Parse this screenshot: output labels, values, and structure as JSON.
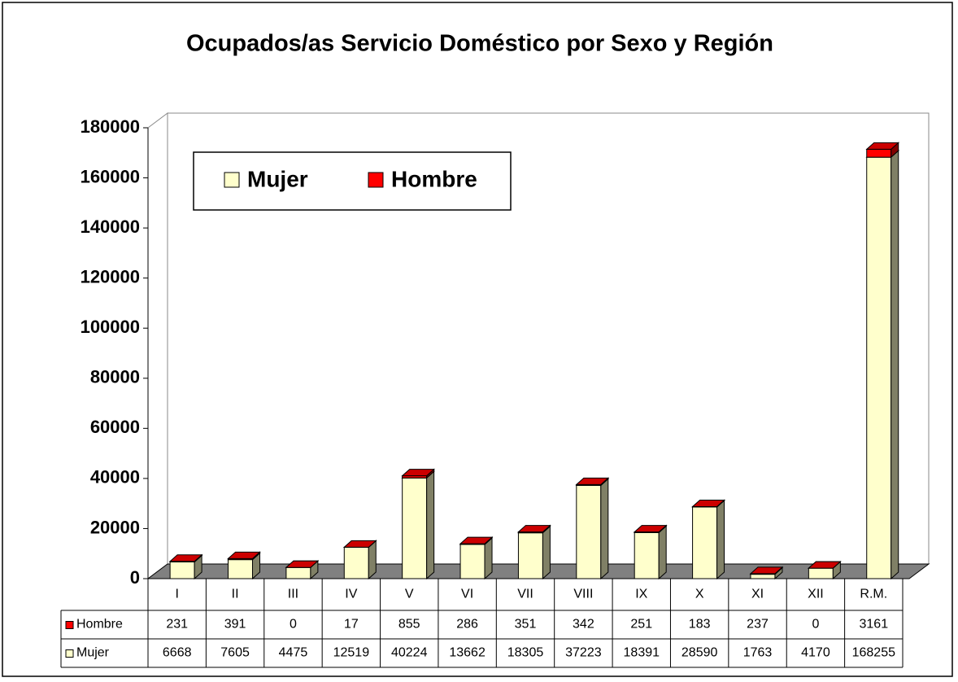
{
  "chart_data": {
    "type": "bar",
    "stacked": true,
    "title": "Ocupados/as Servicio Doméstico por Sexo y Región",
    "categories": [
      "I",
      "II",
      "III",
      "IV",
      "V",
      "VI",
      "VII",
      "VIII",
      "IX",
      "X",
      "XI",
      "XII",
      "R.M."
    ],
    "series": [
      {
        "name": "Mujer",
        "color": "#ffffcc",
        "values": [
          6668,
          7605,
          4475,
          12519,
          40224,
          13662,
          18305,
          37223,
          18391,
          28590,
          1763,
          4170,
          168255
        ]
      },
      {
        "name": "Hombre",
        "color": "#ff0000",
        "values": [
          231,
          391,
          0,
          17,
          855,
          286,
          351,
          342,
          251,
          183,
          237,
          0,
          3161
        ]
      }
    ],
    "ylim": [
      0,
      180000
    ],
    "yticks": [
      0,
      20000,
      40000,
      60000,
      80000,
      100000,
      120000,
      140000,
      160000,
      180000
    ],
    "legend": "upper left",
    "data_table": true
  }
}
